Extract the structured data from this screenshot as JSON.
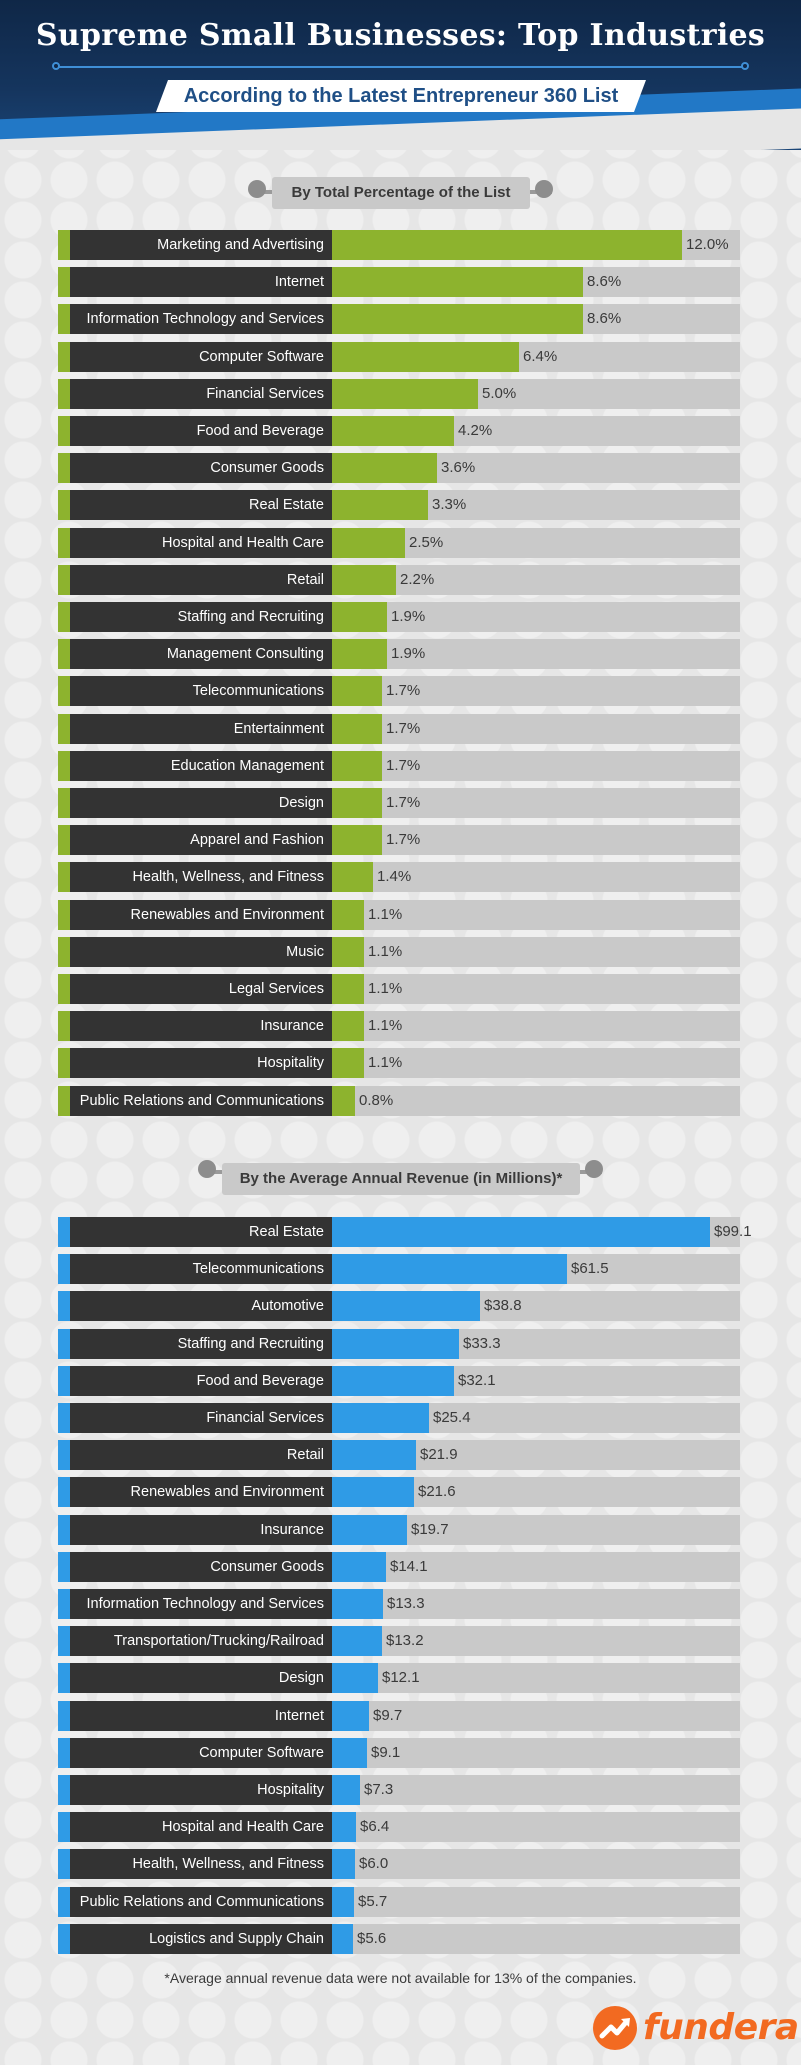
{
  "header": {
    "title": "Supreme Small Businesses: Top Industries",
    "subtitle": "According to the Latest Entrepreneur 360 List"
  },
  "colors": {
    "accent_green": "#8db32e",
    "accent_blue": "#2f9be6",
    "label_bg": "#333333",
    "track_bg": "#c9c9c9",
    "brand_orange": "#f26a21"
  },
  "footnote": "*Average annual revenue data were not available for 13% of the companies.",
  "logo": {
    "text": "fundera",
    "icon": "chart-arrow-icon"
  },
  "chart_data": [
    {
      "type": "bar",
      "orientation": "horizontal",
      "title": "By Total Percentage of the List",
      "unit": "%",
      "xlim": [
        0,
        14
      ],
      "value_labels": [
        "12.0%",
        "8.6%",
        "8.6%",
        "6.4%",
        "5.0%",
        "4.2%",
        "3.6%",
        "3.3%",
        "2.5%",
        "2.2%",
        "1.9%",
        "1.9%",
        "1.7%",
        "1.7%",
        "1.7%",
        "1.7%",
        "1.7%",
        "1.4%",
        "1.1%",
        "1.1%",
        "1.1%",
        "1.1%",
        "1.1%",
        "0.8%"
      ],
      "categories": [
        "Marketing and Advertising",
        "Internet",
        "Information Technology and Services",
        "Computer Software",
        "Financial Services",
        "Food and Beverage",
        "Consumer Goods",
        "Real Estate",
        "Hospital and Health Care",
        "Retail",
        "Staffing and Recruiting",
        "Management Consulting",
        "Telecommunications",
        "Entertainment",
        "Education Management",
        "Design",
        "Apparel and Fashion",
        "Health, Wellness, and Fitness",
        "Renewables and Environment",
        "Music",
        "Legal Services",
        "Insurance",
        "Hospitality",
        "Public Relations and Communications"
      ],
      "values": [
        12.0,
        8.6,
        8.6,
        6.4,
        5.0,
        4.2,
        3.6,
        3.3,
        2.5,
        2.2,
        1.9,
        1.9,
        1.7,
        1.7,
        1.7,
        1.7,
        1.7,
        1.4,
        1.1,
        1.1,
        1.1,
        1.1,
        1.1,
        0.8
      ]
    },
    {
      "type": "bar",
      "orientation": "horizontal",
      "title": "By the Average Annual Revenue (in Millions)*",
      "unit": "$M",
      "xlim": [
        0,
        107
      ],
      "value_labels": [
        "$99.1",
        "$61.5",
        "$38.8",
        "$33.3",
        "$32.1",
        "$25.4",
        "$21.9",
        "$21.6",
        "$19.7",
        "$14.1",
        "$13.3",
        "$13.2",
        "$12.1",
        "$9.7",
        "$9.1",
        "$7.3",
        "$6.4",
        "$6.0",
        "$5.7",
        "$5.6"
      ],
      "categories": [
        "Real Estate",
        "Telecommunications",
        "Automotive",
        "Staffing and Recruiting",
        "Food and Beverage",
        "Financial Services",
        "Retail",
        "Renewables and Environment",
        "Insurance",
        "Consumer Goods",
        "Information Technology and Services",
        "Transportation/Trucking/Railroad",
        "Design",
        "Internet",
        "Computer Software",
        "Hospitality",
        "Hospital and Health Care",
        "Health, Wellness, and Fitness",
        "Public Relations and Communications",
        "Logistics and Supply Chain"
      ],
      "values": [
        99.1,
        61.5,
        38.8,
        33.3,
        32.1,
        25.4,
        21.9,
        21.6,
        19.7,
        14.1,
        13.3,
        13.2,
        12.1,
        9.7,
        9.1,
        7.3,
        6.4,
        6.0,
        5.7,
        5.6
      ]
    }
  ]
}
